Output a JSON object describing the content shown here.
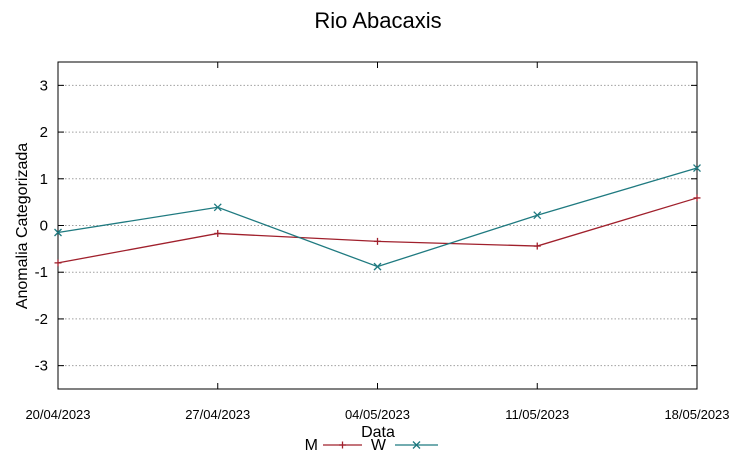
{
  "chart_data": {
    "type": "line",
    "title": "Rio Abacaxis",
    "xlabel": "Data",
    "ylabel": "Anomalia Categorizada",
    "categories": [
      "20/04/2023",
      "27/04/2023",
      "04/05/2023",
      "11/05/2023",
      "18/05/2023"
    ],
    "ylim": [
      -3.5,
      3.5
    ],
    "yticks": [
      3,
      2,
      1,
      0,
      -1,
      -2,
      -3
    ],
    "ytick_labels": [
      "3",
      "2",
      "1",
      "0",
      "-1",
      "-2",
      "-3"
    ],
    "grid": true,
    "legend_position": "bottom-center",
    "series": [
      {
        "name": "M",
        "values": [
          -0.8,
          -0.17,
          -0.34,
          -0.44,
          0.59
        ],
        "color": "#a0202c",
        "marker": "plus"
      },
      {
        "name": "W",
        "values": [
          -0.15,
          0.39,
          -0.88,
          0.22,
          1.23
        ],
        "color": "#1f7a80",
        "marker": "cross"
      }
    ]
  }
}
